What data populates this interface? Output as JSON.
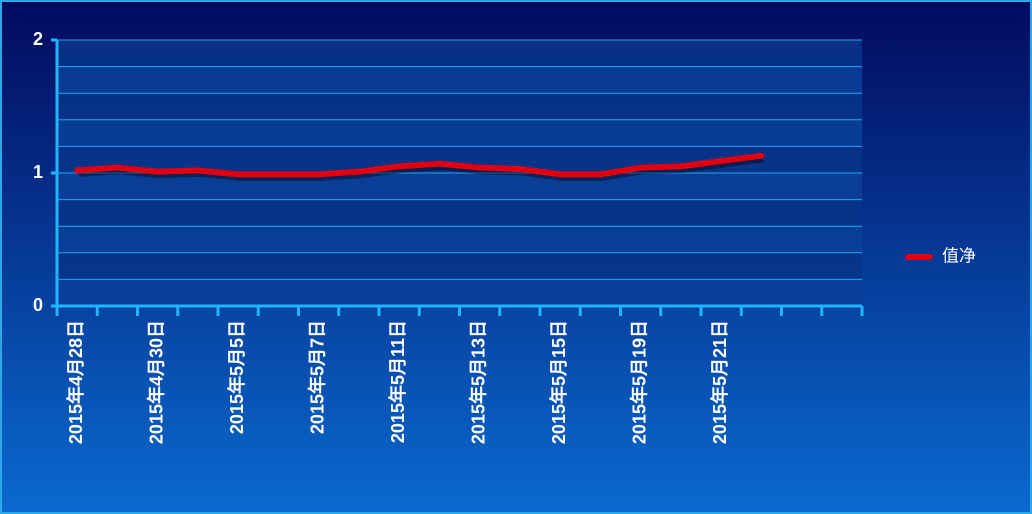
{
  "chart_data": {
    "type": "line",
    "categories": [
      "2015年4月28日",
      null,
      "2015年4月30日",
      null,
      "2015年5月5日",
      null,
      "2015年5月7日",
      null,
      "2015年5月11日",
      null,
      "2015年5月13日",
      null,
      "2015年5月15日",
      null,
      "2015年5月19日",
      null,
      "2015年5月21日",
      null,
      null,
      null
    ],
    "series": [
      {
        "name": "值净",
        "color": "#e0000f",
        "values": [
          1.02,
          1.04,
          1.01,
          1.02,
          0.99,
          0.99,
          0.99,
          1.01,
          1.05,
          1.07,
          1.04,
          1.03,
          0.99,
          0.99,
          1.04,
          1.05,
          1.09,
          1.13,
          null,
          null
        ]
      }
    ],
    "ylim": [
      0,
      2
    ],
    "yticks": [
      0,
      1,
      2
    ],
    "yminor": [
      0.2,
      0.4,
      0.6,
      0.8,
      1.2,
      1.4,
      1.6,
      1.8
    ],
    "grid": true,
    "legend": "right"
  }
}
